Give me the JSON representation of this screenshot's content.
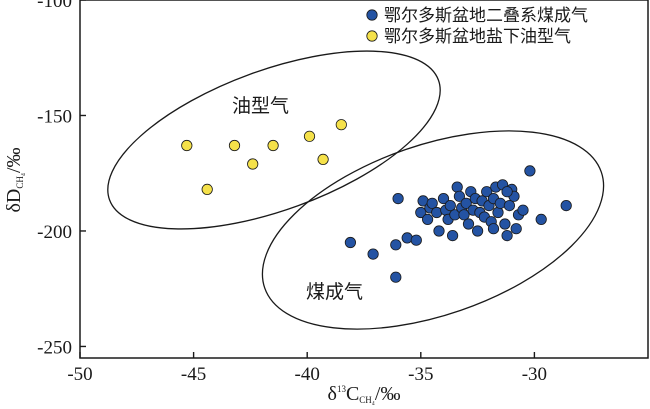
{
  "chart_data": {
    "type": "scatter",
    "xlim": [
      -50,
      -25
    ],
    "ylim": [
      -255,
      -100
    ],
    "xticks": [
      -50,
      -45,
      -40,
      -35,
      -30
    ],
    "yticks": [
      -100,
      -150,
      -200,
      -250
    ],
    "xlabel": {
      "main": "δ",
      "sup": "13",
      "symbol": "C",
      "sub": "CH₄",
      "unit": "/‰"
    },
    "ylabel": {
      "main": "δD",
      "sub": "CH₄",
      "unit": "/‰"
    },
    "grid": false,
    "legend_position": "top-right",
    "series": [
      {
        "name": "鄂尔多斯盆地二叠系煤成气",
        "color": "#2453a3",
        "points": [
          [
            -38.1,
            -205
          ],
          [
            -37.1,
            -210
          ],
          [
            -36.1,
            -220
          ],
          [
            -36.1,
            -206
          ],
          [
            -36.0,
            -186
          ],
          [
            -35.6,
            -203
          ],
          [
            -35.2,
            -204
          ],
          [
            -35.0,
            -192
          ],
          [
            -34.9,
            -187
          ],
          [
            -34.7,
            -195
          ],
          [
            -34.6,
            -190
          ],
          [
            -34.5,
            -188
          ],
          [
            -34.3,
            -192
          ],
          [
            -34.2,
            -200
          ],
          [
            -34.0,
            -186
          ],
          [
            -33.9,
            -191
          ],
          [
            -33.8,
            -195
          ],
          [
            -33.7,
            -189
          ],
          [
            -33.6,
            -202
          ],
          [
            -33.5,
            -193
          ],
          [
            -33.4,
            -181
          ],
          [
            -33.3,
            -185
          ],
          [
            -33.2,
            -190
          ],
          [
            -33.1,
            -193
          ],
          [
            -33.0,
            -188
          ],
          [
            -32.9,
            -197
          ],
          [
            -32.8,
            -183
          ],
          [
            -32.7,
            -191
          ],
          [
            -32.6,
            -186
          ],
          [
            -32.5,
            -200
          ],
          [
            -32.4,
            -192
          ],
          [
            -32.3,
            -187
          ],
          [
            -32.2,
            -194
          ],
          [
            -32.1,
            -183
          ],
          [
            -32.0,
            -189
          ],
          [
            -31.9,
            -196
          ],
          [
            -31.8,
            -186
          ],
          [
            -31.7,
            -181
          ],
          [
            -31.6,
            -192
          ],
          [
            -31.5,
            -188
          ],
          [
            -31.4,
            -180
          ],
          [
            -31.3,
            -197
          ],
          [
            -31.2,
            -202
          ],
          [
            -31.1,
            -189
          ],
          [
            -31.0,
            -182
          ],
          [
            -30.9,
            -185
          ],
          [
            -30.8,
            -199
          ],
          [
            -30.7,
            -193
          ],
          [
            -31.2,
            -183
          ],
          [
            -31.8,
            -199
          ],
          [
            -30.5,
            -191
          ],
          [
            -30.2,
            -174
          ],
          [
            -29.7,
            -195
          ],
          [
            -28.6,
            -189
          ]
        ]
      },
      {
        "name": "鄂尔多斯盆地盐下油型气",
        "color": "#f5e14a",
        "points": [
          [
            -45.3,
            -163
          ],
          [
            -44.4,
            -182
          ],
          [
            -43.2,
            -163
          ],
          [
            -42.4,
            -171
          ],
          [
            -41.5,
            -163
          ],
          [
            -39.9,
            -159
          ],
          [
            -39.3,
            -169
          ],
          [
            -38.5,
            -154
          ]
        ]
      }
    ],
    "region_labels": [
      "油型气",
      "煤成气"
    ]
  }
}
